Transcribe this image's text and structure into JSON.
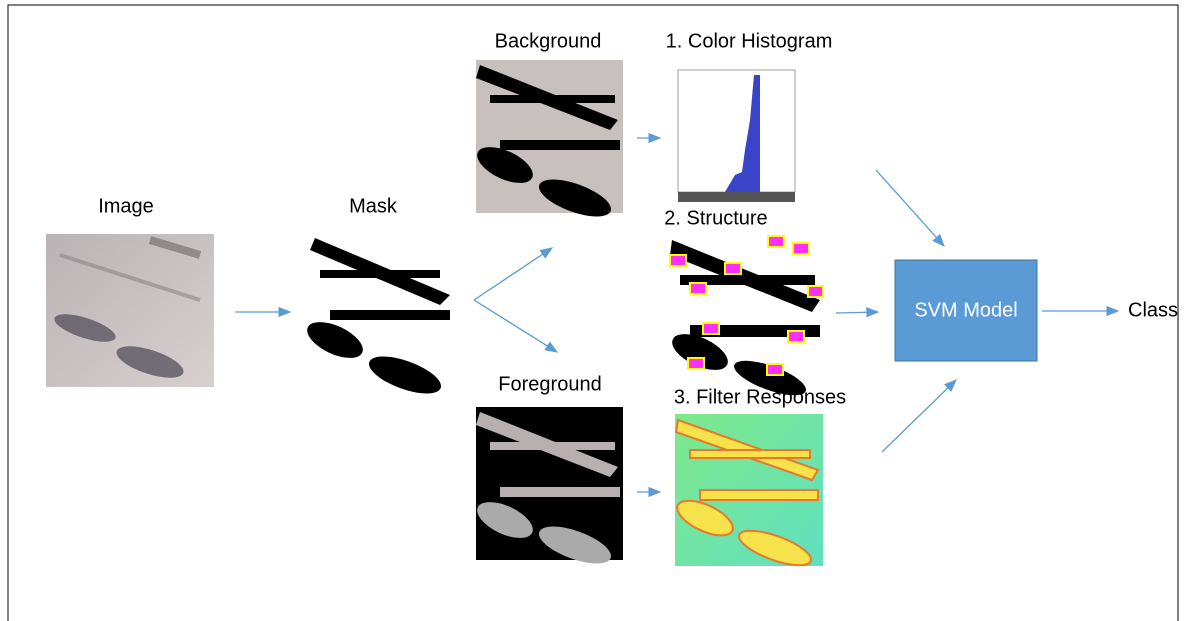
{
  "nodes": {
    "image": {
      "label": "Image"
    },
    "mask": {
      "label": "Mask"
    },
    "background": {
      "label": "Background"
    },
    "foreground": {
      "label": "Foreground"
    },
    "histogram": {
      "label": "1. Color Histogram"
    },
    "structure": {
      "label": "2. Structure"
    },
    "filter": {
      "label": "3. Filter Responses"
    },
    "svm": {
      "label": "SVM Model"
    },
    "class": {
      "label": "Class"
    }
  }
}
